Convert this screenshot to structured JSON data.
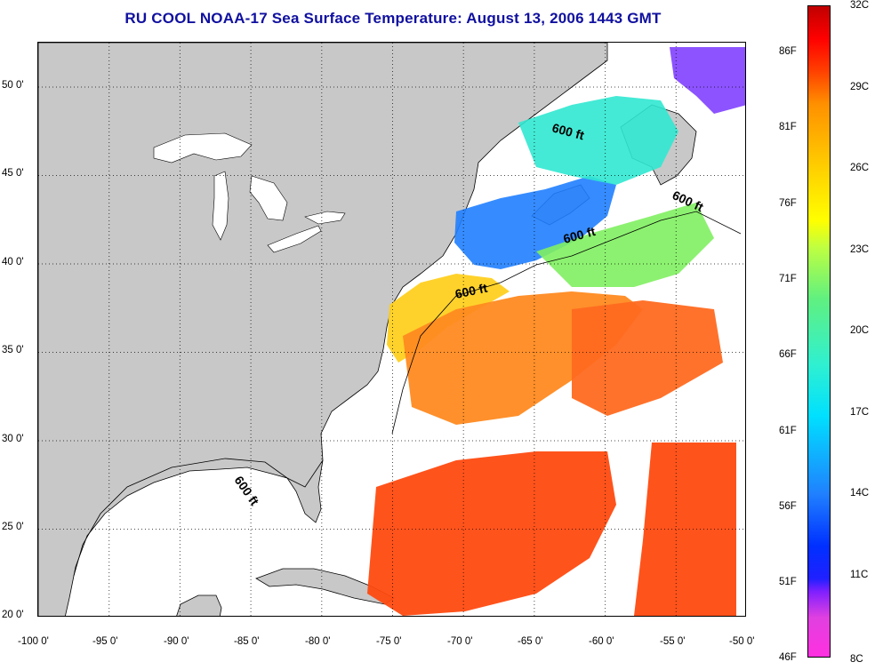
{
  "title": "RU COOL  NOAA-17  Sea Surface Temperature:  August 13, 2006 1443 GMT",
  "map": {
    "lon_labels": [
      "-100 0'",
      "-95 0'",
      "-90 0'",
      "-85 0'",
      "-80 0'",
      "-75 0'",
      "-70 0'",
      "-65 0'",
      "-60 0'",
      "-55 0'",
      "-50 0'"
    ],
    "lat_labels": [
      "50 0'",
      "45 0'",
      "40 0'",
      "35 0'",
      "30 0'",
      "25 0'",
      "20 0'"
    ],
    "lon_range": [
      -100,
      -50
    ],
    "lat_range": [
      20,
      52.5
    ],
    "contour_labels": [
      "600 ft",
      "600 ft",
      "600 ft",
      "600 ft",
      "600 ft"
    ],
    "land_color": "#c8c8c8",
    "cloud_color": "#ffffff"
  },
  "colorbar": {
    "celsius_labels": [
      "32C",
      "29C",
      "26C",
      "23C",
      "20C",
      "17C",
      "14C",
      "11C",
      "8C"
    ],
    "fahrenheit_labels": [
      "86F",
      "81F",
      "76F",
      "71F",
      "66F",
      "61F",
      "56F",
      "51F",
      "46F"
    ],
    "range_c": [
      8,
      32
    ]
  }
}
